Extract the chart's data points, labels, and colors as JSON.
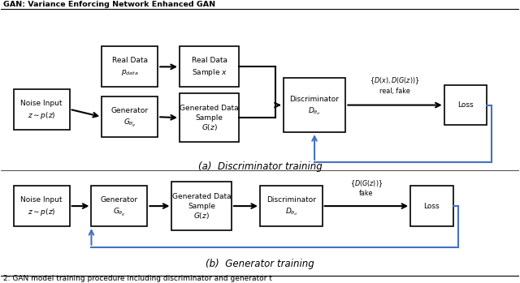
{
  "title": "GAN: Variance Enforcing Network Enhanced GAN",
  "caption_a": "(a)  Discriminator training",
  "caption_b": "(b)  Generator training",
  "bg_color": "#ffffff",
  "blue_arrow_color": "#4472c4"
}
